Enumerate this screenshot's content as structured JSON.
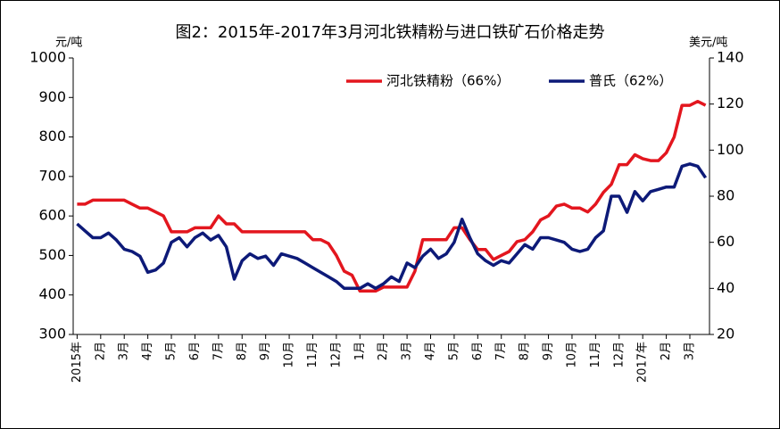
{
  "chart_data": {
    "type": "line",
    "title": "图2：2015年-2017年3月河北铁精粉与进口铁矿石价格走势",
    "y_label": "元/吨",
    "y2_label": "美元/吨",
    "categories": [
      "2015年",
      null,
      null,
      "2月",
      null,
      null,
      "3月",
      null,
      null,
      "4月",
      null,
      null,
      "5月",
      null,
      null,
      "6月",
      null,
      null,
      "7月",
      null,
      null,
      "8月",
      null,
      null,
      "9月",
      null,
      null,
      "10月",
      null,
      null,
      "11月",
      null,
      null,
      "12月",
      null,
      null,
      "1月",
      null,
      null,
      "2月",
      null,
      null,
      "3月",
      null,
      null,
      "4月",
      null,
      null,
      "5月",
      null,
      null,
      "6月",
      null,
      null,
      "7月",
      null,
      null,
      "8月",
      null,
      null,
      "9月",
      null,
      null,
      "10月",
      null,
      null,
      "11月",
      null,
      null,
      "12月",
      null,
      null,
      "2017年",
      null,
      null,
      "2月",
      null,
      null,
      "3月",
      null,
      null
    ],
    "series": [
      {
        "name": "河北铁精粉（66%）",
        "color": "#e3161e",
        "values": [
          630,
          630,
          640,
          640,
          640,
          640,
          640,
          630,
          620,
          620,
          610,
          600,
          560,
          560,
          560,
          570,
          570,
          570,
          600,
          580,
          580,
          560,
          560,
          560,
          560,
          560,
          560,
          560,
          560,
          560,
          540,
          540,
          530,
          500,
          460,
          450,
          410,
          410,
          410,
          420,
          420,
          420,
          420,
          460,
          540,
          540,
          540,
          540,
          570,
          570,
          540,
          515,
          515,
          490,
          500,
          510,
          535,
          540,
          560,
          590,
          600,
          625,
          630,
          620,
          620,
          610,
          630,
          660,
          680,
          730,
          730,
          755,
          745,
          740,
          740,
          760,
          800,
          880,
          880,
          890,
          880
        ]
      },
      {
        "name": "普氏（62%）",
        "color": "#0d1a78",
        "axis": "y2",
        "values": [
          68,
          65,
          62,
          62,
          64,
          61,
          57,
          56,
          54,
          47,
          48,
          51,
          60,
          62,
          58,
          62,
          64,
          61,
          63,
          58,
          44,
          52,
          55,
          53,
          54,
          50,
          55,
          54,
          53,
          51,
          49,
          47,
          45,
          43,
          40,
          40,
          40,
          42,
          40,
          42,
          45,
          43,
          51,
          49,
          54,
          57,
          53,
          55,
          60,
          70,
          62,
          55,
          52,
          50,
          52,
          51,
          55,
          59,
          57,
          62,
          62,
          61,
          60,
          57,
          56,
          57,
          62,
          65,
          80,
          80,
          73,
          82,
          78,
          82,
          83,
          84,
          84,
          93,
          94,
          93,
          88
        ]
      }
    ],
    "ylim": [
      300,
      1000
    ],
    "yticks": [
      300,
      400,
      500,
      600,
      700,
      800,
      900,
      1000
    ],
    "y2lim": [
      20,
      140
    ],
    "y2ticks": [
      20,
      40,
      60,
      80,
      100,
      120,
      140
    ],
    "legend": "top-right"
  }
}
